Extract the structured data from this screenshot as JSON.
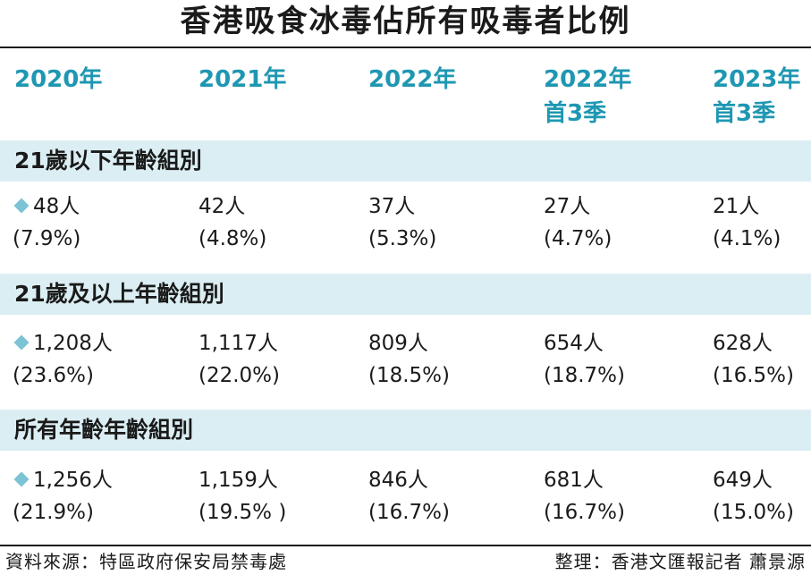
{
  "title": "香港吸食冰毒佔所有吸毒者比例",
  "chart_data": {
    "type": "table",
    "columns": [
      {
        "line1": "2020年",
        "line2": ""
      },
      {
        "line1": "2021年",
        "line2": ""
      },
      {
        "line1": "2022年",
        "line2": ""
      },
      {
        "line1": "2022年",
        "line2": "首3季"
      },
      {
        "line1": "2023年",
        "line2": "首3季"
      }
    ],
    "groups": [
      {
        "label": "21歲以下年齡組別",
        "cells": [
          {
            "count": "48人",
            "pct": "(7.9%)"
          },
          {
            "count": "42人",
            "pct": "(4.8%)"
          },
          {
            "count": "37人",
            "pct": "(5.3%)"
          },
          {
            "count": "27人",
            "pct": "(4.7%)"
          },
          {
            "count": "21人",
            "pct": "(4.1%)"
          }
        ]
      },
      {
        "label": "21歲及以上年齡組別",
        "cells": [
          {
            "count": "1,208人",
            "pct": "(23.6%)"
          },
          {
            "count": "1,117人",
            "pct": "(22.0%)"
          },
          {
            "count": "809人",
            "pct": "(18.5%)"
          },
          {
            "count": "654人",
            "pct": "(18.7%)"
          },
          {
            "count": "628人",
            "pct": "(16.5%)"
          }
        ]
      },
      {
        "label": "所有年齡年齡組別",
        "cells": [
          {
            "count": "1,256人",
            "pct": "(21.9%)"
          },
          {
            "count": "1,159人",
            "pct": "(19.5% )"
          },
          {
            "count": "846人",
            "pct": "(16.7%)"
          },
          {
            "count": "681人",
            "pct": "(16.7%)"
          },
          {
            "count": "649人",
            "pct": "(15.0%)"
          }
        ]
      }
    ]
  },
  "footer": {
    "source": "資料來源：特區政府保安局禁毒處",
    "credit": "整理：香港文匯報記者 蕭景源"
  },
  "colors": {
    "header_text": "#1e97b2",
    "band_bg": "#dbeef3",
    "diamond": "#7cc3d4"
  }
}
